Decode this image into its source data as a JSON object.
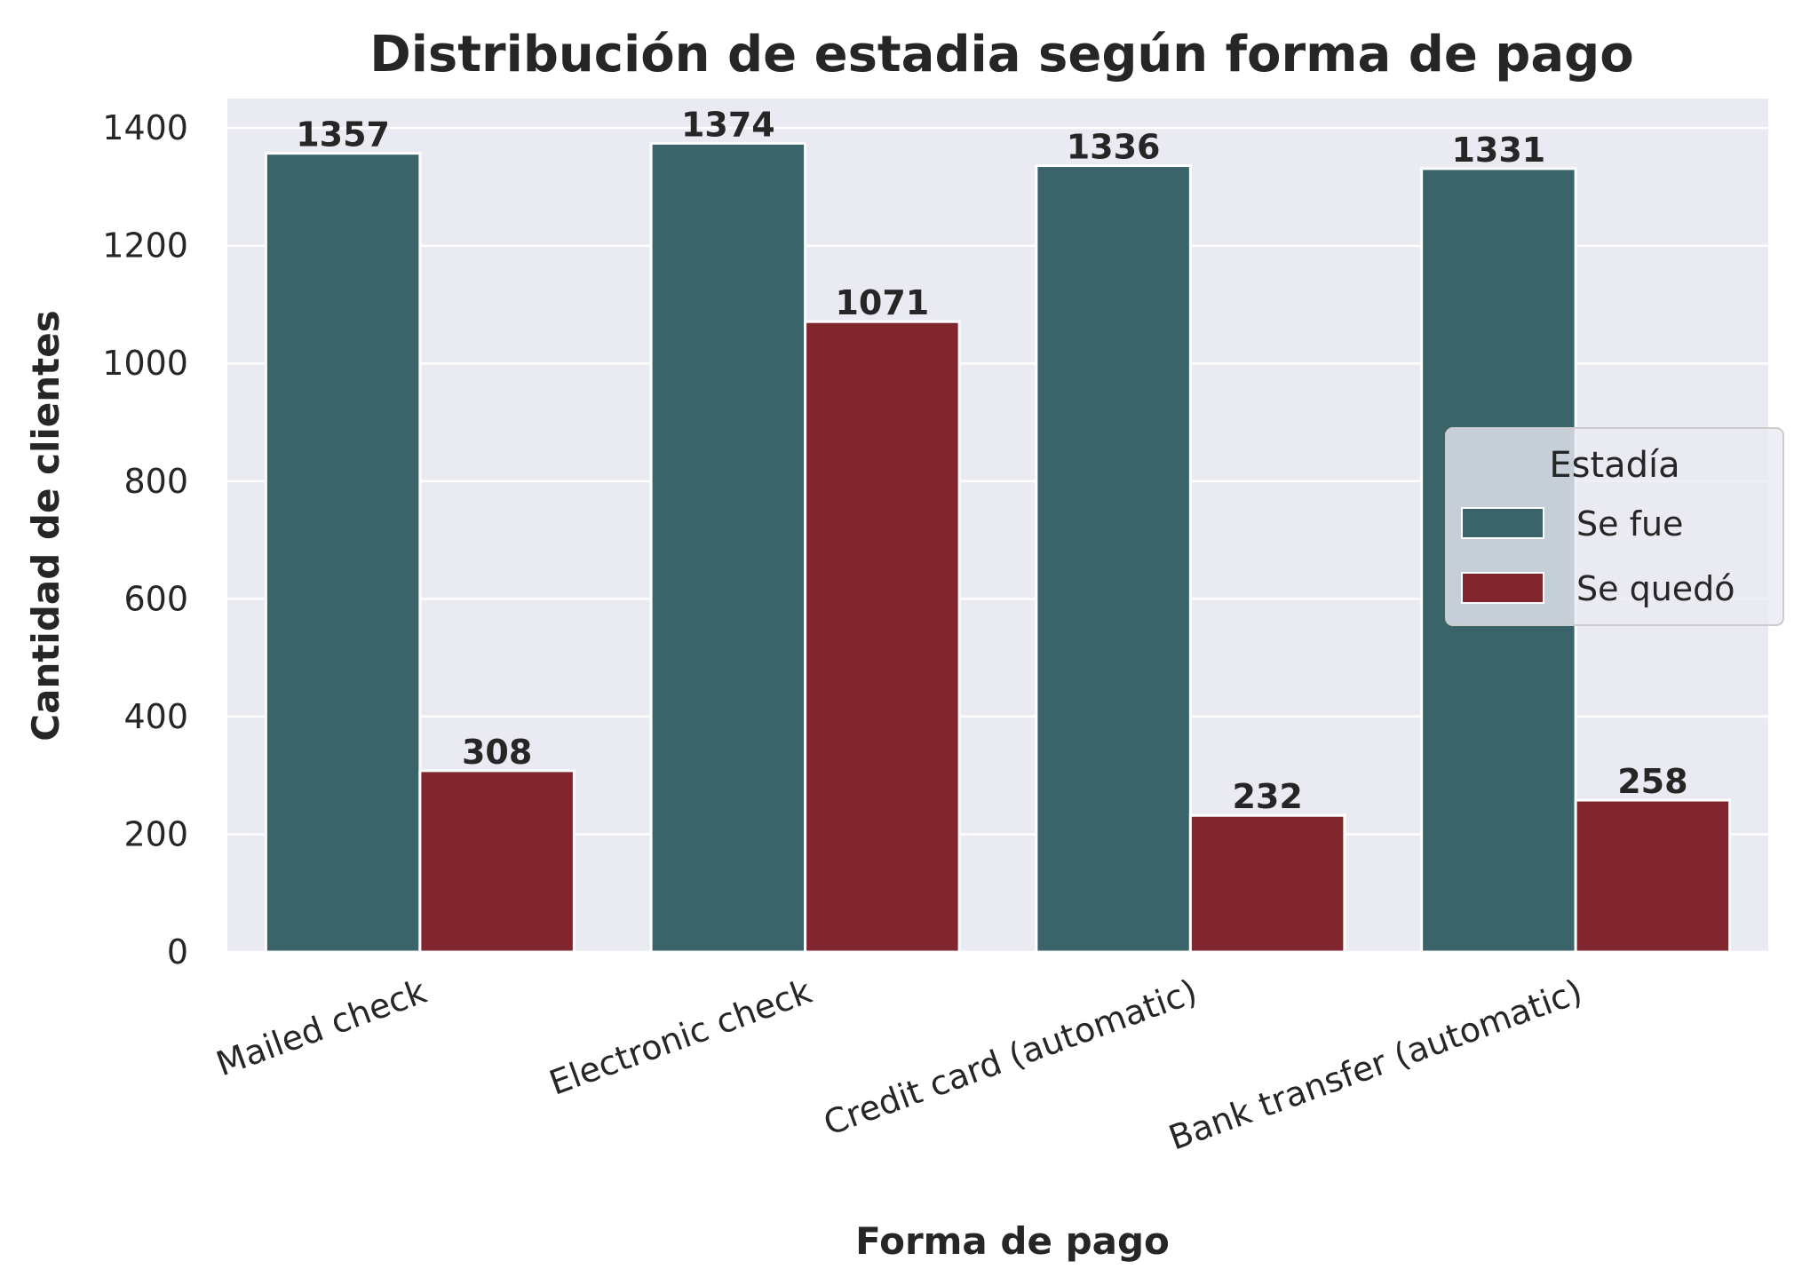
{
  "chart_data": {
    "type": "bar",
    "title": "Distribución de estadia según forma de pago",
    "xlabel": "Forma de pago",
    "ylabel": "Cantidad de clientes",
    "categories": [
      "Mailed check",
      "Electronic check",
      "Credit card (automatic)",
      "Bank transfer (automatic)"
    ],
    "series": [
      {
        "name": "Se fue",
        "color": "#3b646a",
        "values": [
          1357,
          1374,
          1336,
          1331
        ]
      },
      {
        "name": "Se quedó",
        "color": "#81252f",
        "values": [
          308,
          1071,
          232,
          258
        ]
      }
    ],
    "ylim": [
      0,
      1450
    ],
    "yticks": [
      0,
      200,
      400,
      600,
      800,
      1000,
      1200,
      1400
    ],
    "grid": true,
    "background": "#eaeaf2",
    "legend": {
      "title": "Estadía",
      "placement": "center-right"
    }
  }
}
